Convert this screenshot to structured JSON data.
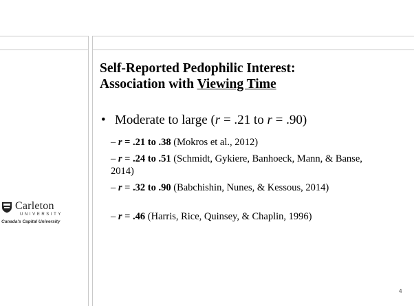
{
  "logo": {
    "name": "Carleton",
    "subtitle": "UNIVERSITY",
    "tagline": "Canada's Capital University"
  },
  "title": {
    "line1": "Self-Reported Pedophilic Interest:",
    "line2_prefix": "Association with ",
    "line2_underlined": "Viewing Time"
  },
  "bullet": {
    "text_start": "Moderate to large (",
    "r1": "r",
    "text_mid": " = .21 to ",
    "r2": "r",
    "text_end": " = .90)"
  },
  "items": [
    {
      "r": "r",
      "range": " = .21 to .38",
      "cite": " (Mokros et al., 2012)"
    },
    {
      "r": "r",
      "range": " = .24 to .51",
      "cite": " (Schmidt, Gykiere, Banhoeck, Mann, & Banse, 2014)"
    },
    {
      "r": "r",
      "range": " = .32 to .90",
      "cite": " (Babchishin, Nunes, & Kessous, 2014)"
    },
    {
      "r": "r",
      "range": " = .46",
      "cite": " (Harris, Rice, Quinsey, & Chaplin, 1996)"
    }
  ],
  "page_number": "4",
  "colors": {
    "frame": "#c9c9c9",
    "text": "#000000"
  },
  "icons": {
    "bullet": "bullet-dot",
    "dash": "en-dash",
    "logo_mark": "shield-icon"
  }
}
